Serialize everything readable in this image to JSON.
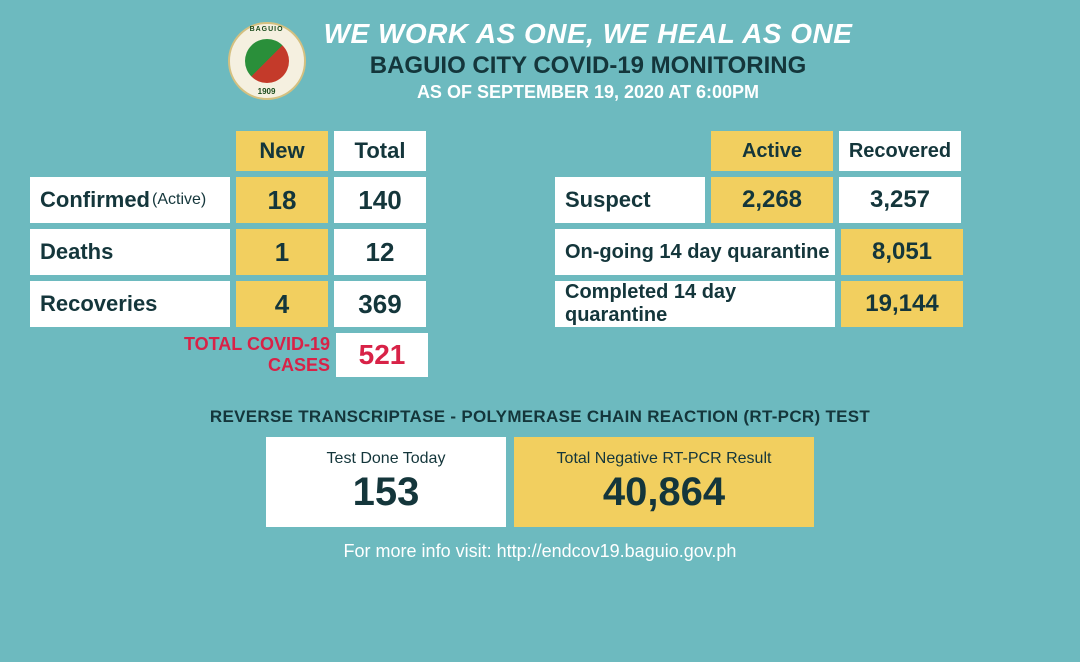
{
  "colors": {
    "background": "#6dbabf",
    "white": "#ffffff",
    "yellow": "#f2cf5f",
    "dark_text": "#14363b",
    "red": "#d82247"
  },
  "seal": {
    "top_text": "CITY OF BAGUIO",
    "year": "1909"
  },
  "header": {
    "slogan": "WE WORK AS ONE, WE HEAL AS ONE",
    "title": "BAGUIO CITY COVID-19 MONITORING",
    "asof": "AS OF SEPTEMBER 19, 2020 AT 6:00PM"
  },
  "left_table": {
    "col_headers": {
      "new": "New",
      "total": "Total"
    },
    "rows": [
      {
        "label": "Confirmed",
        "suffix": "(Active)",
        "new": "18",
        "total": "140"
      },
      {
        "label": "Deaths",
        "suffix": "",
        "new": "1",
        "total": "12"
      },
      {
        "label": "Recoveries",
        "suffix": "",
        "new": "4",
        "total": "369"
      }
    ],
    "total_label": "TOTAL COVID-19 CASES",
    "total_value": "521"
  },
  "right_table": {
    "col_headers": {
      "active": "Active",
      "recovered": "Recovered"
    },
    "suspect": {
      "label": "Suspect",
      "active": "2,268",
      "recovered": "3,257"
    },
    "ongoing": {
      "label": "On-going 14 day quarantine",
      "value": "8,051"
    },
    "completed": {
      "label": "Completed 14 day quarantine",
      "value": "19,144"
    }
  },
  "pcr": {
    "title": "REVERSE TRANSCRIPTASE - POLYMERASE CHAIN REACTION (RT-PCR) TEST",
    "today_label": "Test Done Today",
    "today_value": "153",
    "neg_label": "Total Negative RT-PCR Result",
    "neg_value": "40,864"
  },
  "footer": {
    "text": "For more info visit: http://endcov19.baguio.gov.ph"
  }
}
